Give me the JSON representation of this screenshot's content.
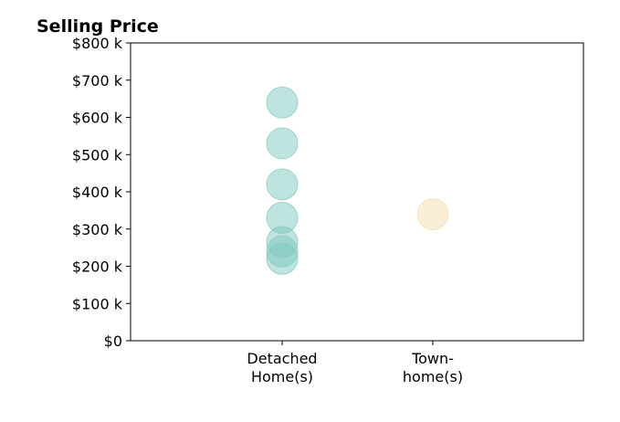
{
  "chart_data": {
    "type": "scatter",
    "title": "Selling Price",
    "xlabel": "",
    "ylabel": "",
    "categories": [
      [
        "Detached",
        "Home(s)"
      ],
      [
        "Town-",
        "home(s)"
      ]
    ],
    "series": [
      {
        "category_index": 0,
        "color": "#7fc7bf",
        "values": [
          640000,
          530000,
          420000,
          330000,
          265000,
          240000,
          220000
        ]
      },
      {
        "category_index": 1,
        "color": "#f5deb0",
        "values": [
          340000
        ]
      }
    ],
    "ylim": [
      0,
      800000
    ],
    "yticks": [
      0,
      100000,
      200000,
      300000,
      400000,
      500000,
      600000,
      700000,
      800000
    ],
    "ytick_labels": [
      "$0",
      "$100 k",
      "$200 k",
      "$300 k",
      "$400 k",
      "$500 k",
      "$600 k",
      "$700 k",
      "$800 k"
    ],
    "grid": false,
    "legend": "none"
  }
}
